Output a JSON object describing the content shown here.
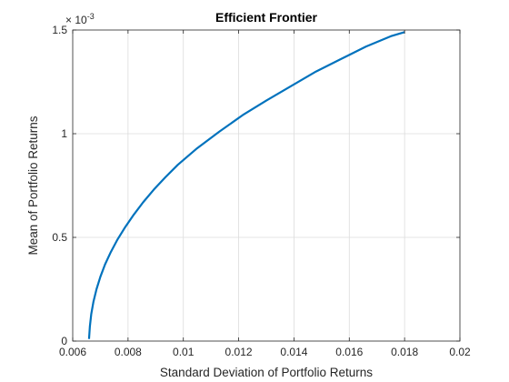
{
  "chart_data": {
    "type": "line",
    "title": "Efficient Frontier",
    "xlabel": "Standard Deviation of Portfolio Returns",
    "ylabel": "Mean of Portfolio Returns",
    "xlim": [
      0.006,
      0.02
    ],
    "ylim": [
      0,
      0.0015
    ],
    "x_ticks": [
      0.006,
      0.008,
      0.01,
      0.012,
      0.014,
      0.016,
      0.018,
      0.02
    ],
    "x_tick_labels": [
      "0.006",
      "0.008",
      "0.01",
      "0.012",
      "0.014",
      "0.016",
      "0.018",
      "0.02"
    ],
    "y_ticks": [
      0,
      0.0005,
      0.001,
      0.0015
    ],
    "y_tick_labels": [
      "0",
      "0.5",
      "1",
      "1.5"
    ],
    "y_exponent_base": "× 10",
    "y_exponent_power": "-3",
    "grid": true,
    "line_color": "#0072bd",
    "series": [
      {
        "x": [
          0.00659,
          0.00662,
          0.00667,
          0.00675,
          0.00686,
          0.007,
          0.00717,
          0.00738,
          0.00762,
          0.0079,
          0.00821,
          0.00855,
          0.00893,
          0.00935,
          0.0098,
          0.0105,
          0.0113,
          0.01215,
          0.013,
          0.0139,
          0.0148,
          0.0157,
          0.0166,
          0.0175,
          0.018
        ],
        "y": [
          1e-05,
          7e-05,
          0.00013,
          0.00019,
          0.00025,
          0.00031,
          0.00037,
          0.00043,
          0.00049,
          0.00055,
          0.00061,
          0.00067,
          0.00073,
          0.00079,
          0.00085,
          0.00093,
          0.00101,
          0.00109,
          0.00116,
          0.00123,
          0.0013,
          0.00136,
          0.00142,
          0.00147,
          0.00149
        ]
      }
    ]
  }
}
